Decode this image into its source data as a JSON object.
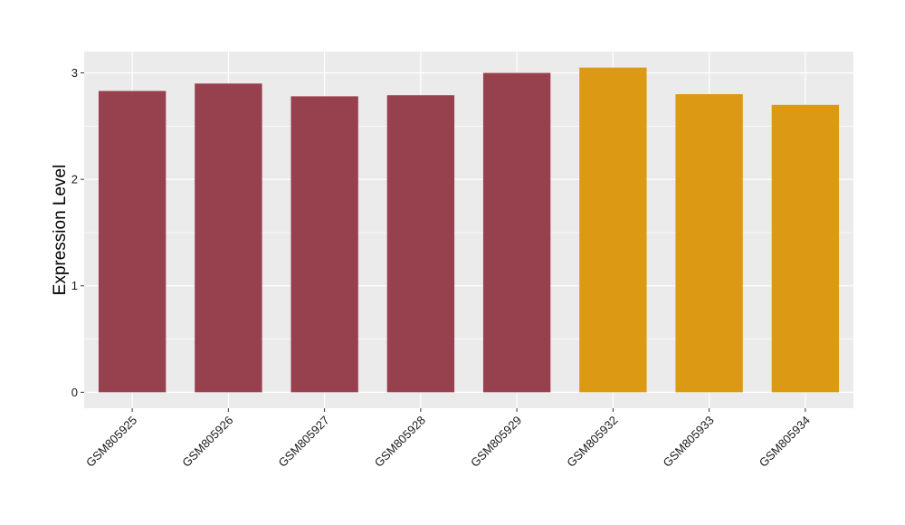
{
  "chart_data": {
    "type": "bar",
    "categories": [
      "GSM805925",
      "GSM805926",
      "GSM805927",
      "GSM805928",
      "GSM805929",
      "GSM805932",
      "GSM805933",
      "GSM805934"
    ],
    "values": [
      2.83,
      2.9,
      2.78,
      2.79,
      3.0,
      3.05,
      2.8,
      2.7
    ],
    "bar_colors": [
      "#98414e",
      "#98414e",
      "#98414e",
      "#98414e",
      "#98414e",
      "#dc9914",
      "#dc9914",
      "#dc9914"
    ],
    "title": "",
    "xlabel": "",
    "ylabel": "Expression Level",
    "ylim": [
      -0.15,
      3.2
    ],
    "yticks": [
      0,
      1,
      2,
      3
    ],
    "grid": true,
    "legend": "none",
    "panel_background": "#ebebeb",
    "gridline_color": "#ffffff"
  }
}
